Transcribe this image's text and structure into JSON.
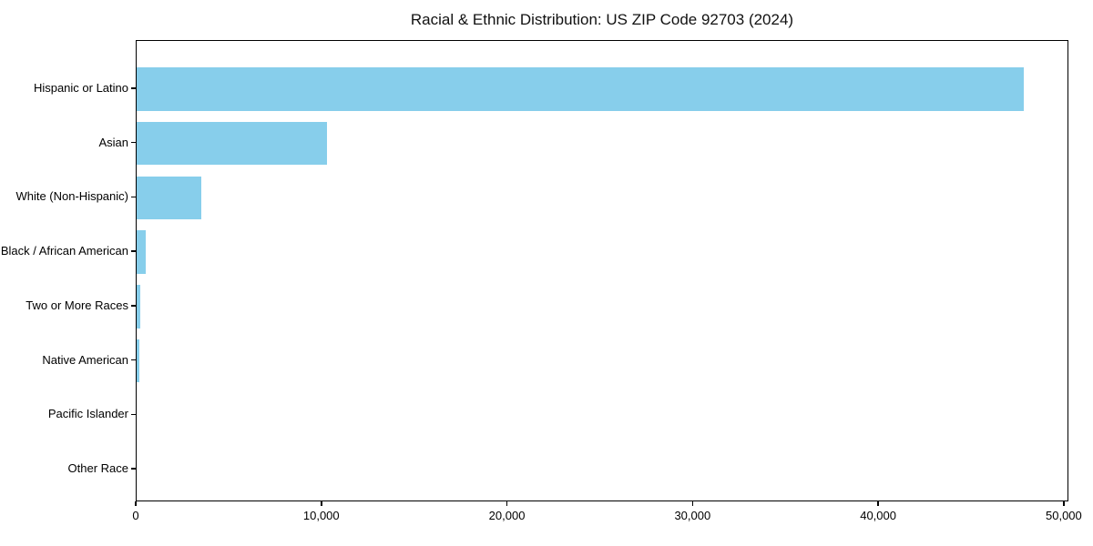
{
  "figure": {
    "title": "Racial & Ethnic Distribution: US ZIP Code 92703 (2024)"
  },
  "chart_data": {
    "type": "bar",
    "orientation": "horizontal",
    "title": "Racial & Ethnic Distribution: US ZIP Code 92703 (2024)",
    "categories": [
      "Hispanic or Latino",
      "Asian",
      "White (Non-Hispanic)",
      "Black / African American",
      "Two or More Races",
      "Native American",
      "Pacific Islander",
      "Other Race"
    ],
    "values": [
      47900,
      10300,
      3500,
      500,
      200,
      150,
      0,
      0
    ],
    "xlabel": "",
    "ylabel": "",
    "xlim": [
      0,
      50250
    ],
    "x_ticks": [
      {
        "value": 0,
        "label": "0"
      },
      {
        "value": 10000,
        "label": "10,000"
      },
      {
        "value": 20000,
        "label": "20,000"
      },
      {
        "value": 30000,
        "label": "30,000"
      },
      {
        "value": 40000,
        "label": "40,000"
      },
      {
        "value": 50000,
        "label": "50,000"
      }
    ],
    "bar_color": "#87CEEB",
    "axis_color": "#000000",
    "text_color": "#000000",
    "grid": false,
    "legend": null
  }
}
